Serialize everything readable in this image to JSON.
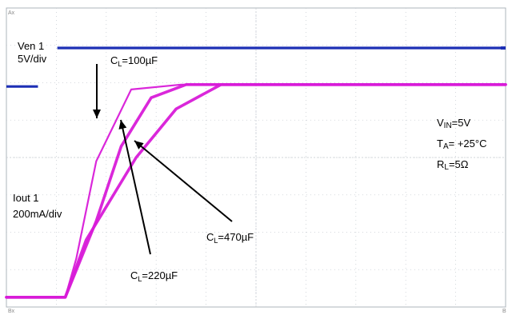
{
  "chart_data": {
    "type": "line",
    "title": "",
    "xlabel": "",
    "ylabel": "",
    "xlim": [
      0,
      10
    ],
    "ylim": [
      0,
      8
    ],
    "grid": true,
    "corner_labels": {
      "top_left": "Ax",
      "bottom_left": "Bx",
      "bottom_right": "B"
    },
    "channel_labels": [
      {
        "line1": "Ven 1",
        "line2": "5V/div"
      },
      {
        "line1": "Iout 1",
        "line2": "200mA/div"
      }
    ],
    "conditions": [
      {
        "main": "V",
        "sub": "IN",
        "rest": "=5V"
      },
      {
        "main": "T",
        "sub": "A",
        "rest": "= +25°C"
      },
      {
        "main": "R",
        "sub": "L",
        "rest": "=5Ω"
      }
    ],
    "enable_trace": {
      "name": "Ven 1",
      "color": "#1c2fb5",
      "low": 5.9,
      "high": 6.93,
      "step_at": 1.02
    },
    "series": [
      {
        "label": {
          "main": "C",
          "sub": "L",
          "rest": "=100µF"
        },
        "color": "#d81bd8",
        "x": [
          0,
          1.18,
          1.4,
          1.8,
          2.5,
          3.5,
          10
        ],
        "y": [
          0.26,
          0.26,
          1.3,
          3.9,
          5.82,
          5.95,
          5.95
        ]
      },
      {
        "label": {
          "main": "C",
          "sub": "L",
          "rest": "=220µF"
        },
        "color": "#d81bd8",
        "x": [
          0,
          1.18,
          1.8,
          2.3,
          2.9,
          3.6,
          10
        ],
        "y": [
          0.26,
          0.26,
          2.3,
          4.3,
          5.6,
          5.95,
          5.95
        ]
      },
      {
        "label": {
          "main": "C",
          "sub": "L",
          "rest": "=470µF"
        },
        "color": "#d81bd8",
        "x": [
          0,
          1.18,
          1.6,
          2.6,
          3.4,
          4.3,
          10
        ],
        "y": [
          0.26,
          0.26,
          1.8,
          4.0,
          5.3,
          5.95,
          5.95
        ]
      }
    ]
  }
}
